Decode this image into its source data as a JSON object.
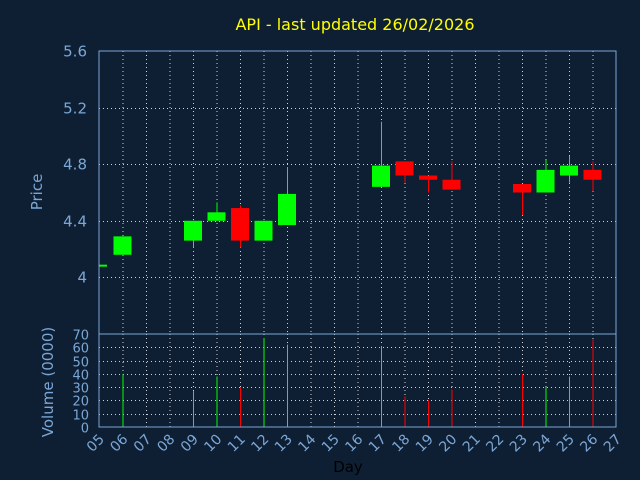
{
  "chart_data": {
    "type": "candlestick",
    "title": "API - last updated 26/02/2026",
    "xlabel": "Day",
    "price_panel": {
      "ylabel": "Price",
      "ylim": [
        3.6,
        5.6
      ],
      "yticks": [
        "4",
        "4.4",
        "4.8",
        "5.2",
        "5.6"
      ],
      "ytick_values": [
        4.0,
        4.4,
        4.8,
        5.2,
        5.6
      ],
      "grid": true
    },
    "volume_panel": {
      "ylabel": "Volume (0000)",
      "ylim": [
        0,
        70
      ],
      "yticks": [
        "0",
        "10",
        "20",
        "30",
        "40",
        "50",
        "60",
        "70"
      ],
      "ytick_values": [
        0,
        10,
        20,
        30,
        40,
        50,
        60,
        70
      ],
      "grid": true
    },
    "days": [
      "05",
      "06",
      "07",
      "08",
      "09",
      "10",
      "11",
      "12",
      "13",
      "14",
      "15",
      "16",
      "17",
      "18",
      "19",
      "20",
      "21",
      "22",
      "23",
      "24",
      "25",
      "26",
      "27"
    ],
    "candles": [
      {
        "day": "05",
        "open": 4.09,
        "high": 4.09,
        "low": 4.09,
        "close": 4.09
      },
      {
        "day": "06",
        "open": 4.16,
        "high": 4.29,
        "low": 4.16,
        "close": 4.29
      },
      {
        "day": "09",
        "open": 4.26,
        "high": 4.4,
        "low": 4.21,
        "close": 4.4
      },
      {
        "day": "10",
        "open": 4.4,
        "high": 4.53,
        "low": 4.4,
        "close": 4.46
      },
      {
        "day": "11",
        "open": 4.49,
        "high": 4.51,
        "low": 4.21,
        "close": 4.26
      },
      {
        "day": "12",
        "open": 4.26,
        "high": 4.4,
        "low": 4.26,
        "close": 4.4
      },
      {
        "day": "13",
        "open": 4.37,
        "high": 4.78,
        "low": 4.37,
        "close": 4.59
      },
      {
        "day": "17",
        "open": 4.64,
        "high": 5.1,
        "low": 4.64,
        "close": 4.79
      },
      {
        "day": "18",
        "open": 4.82,
        "high": 4.82,
        "low": 4.67,
        "close": 4.72
      },
      {
        "day": "19",
        "open": 4.72,
        "high": 4.72,
        "low": 4.6,
        "close": 4.69
      },
      {
        "day": "20",
        "open": 4.69,
        "high": 4.82,
        "low": 4.62,
        "close": 4.62
      },
      {
        "day": "23",
        "open": 4.66,
        "high": 4.66,
        "low": 4.44,
        "close": 4.6
      },
      {
        "day": "24",
        "open": 4.6,
        "high": 4.83,
        "low": 4.6,
        "close": 4.76
      },
      {
        "day": "25",
        "open": 4.72,
        "high": 4.86,
        "low": 4.67,
        "close": 4.79
      },
      {
        "day": "26",
        "open": 4.76,
        "high": 4.82,
        "low": 4.61,
        "close": 4.69
      }
    ],
    "volumes": [
      {
        "day": "06",
        "value": 40
      },
      {
        "day": "09",
        "value": 27
      },
      {
        "day": "10",
        "value": 38
      },
      {
        "day": "11",
        "value": 30
      },
      {
        "day": "12",
        "value": 67
      },
      {
        "day": "13",
        "value": 62
      },
      {
        "day": "17",
        "value": 61
      },
      {
        "day": "18",
        "value": 23
      },
      {
        "day": "19",
        "value": 20
      },
      {
        "day": "20",
        "value": 28
      },
      {
        "day": "23",
        "value": 40
      },
      {
        "day": "24",
        "value": 30
      },
      {
        "day": "25",
        "value": 38
      },
      {
        "day": "26",
        "value": 66
      }
    ],
    "colors": {
      "background": "#0f1f33",
      "up": "#00ff00",
      "down": "#ff0000",
      "title": "#ffff00",
      "axis_text": "#7aa7d6",
      "grid": "#ffffff",
      "frame": "#7aa7d6"
    }
  }
}
